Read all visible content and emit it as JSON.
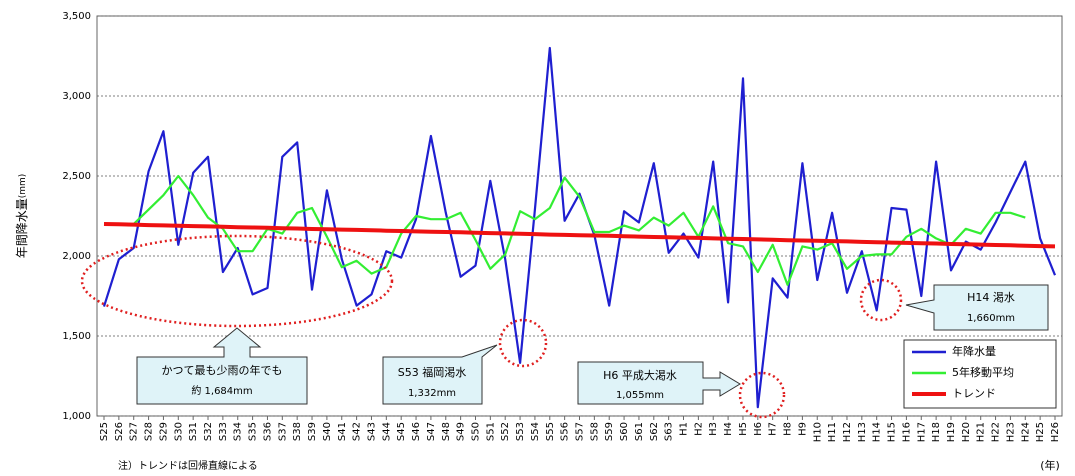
{
  "chart_data": {
    "type": "line",
    "ylabel": "年間降水量",
    "ylabel_unit": "(mm)",
    "xlabel": "(年)",
    "note": "注）トレンドは回帰直線による",
    "categories": [
      "S25",
      "S26",
      "S27",
      "S28",
      "S29",
      "S30",
      "S31",
      "S32",
      "S33",
      "S34",
      "S35",
      "S36",
      "S37",
      "S38",
      "S39",
      "S40",
      "S41",
      "S42",
      "S43",
      "S44",
      "S45",
      "S46",
      "S47",
      "S48",
      "S49",
      "S50",
      "S51",
      "S52",
      "S53",
      "S54",
      "S55",
      "S56",
      "S57",
      "S58",
      "S59",
      "S60",
      "S61",
      "S62",
      "S63",
      "H1",
      "H2",
      "H3",
      "H4",
      "H5",
      "H6",
      "H7",
      "H8",
      "H9",
      "H10",
      "H11",
      "H12",
      "H13",
      "H14",
      "H15",
      "H16",
      "H17",
      "H18",
      "H19",
      "H20",
      "H21",
      "H22",
      "H23",
      "H24",
      "H25",
      "H26"
    ],
    "series": [
      {
        "name": "年降水量",
        "color": "#1f1fd0",
        "values": [
          1684,
          1980,
          2050,
          2530,
          2780,
          2070,
          2520,
          2620,
          1900,
          2050,
          1760,
          1800,
          2620,
          2710,
          1790,
          2410,
          1980,
          1690,
          1760,
          2030,
          1990,
          2230,
          2750,
          2270,
          1870,
          1940,
          2470,
          1980,
          1332,
          2290,
          3300,
          2220,
          2390,
          2130,
          1690,
          2280,
          2210,
          2580,
          2020,
          2140,
          1990,
          2590,
          1710,
          3110,
          1055,
          1860,
          1740,
          2580,
          1850,
          2270,
          1770,
          2030,
          1660,
          2300,
          2290,
          1750,
          2590,
          1910,
          2090,
          2040,
          2210,
          2400,
          2590,
          2110,
          1880
        ]
      },
      {
        "name": "5年移動平均",
        "color": "#33ee33",
        "values": [
          null,
          null,
          2200,
          2290,
          2380,
          2500,
          2380,
          2240,
          2170,
          2030,
          2030,
          2170,
          2140,
          2270,
          2300,
          2120,
          1930,
          1970,
          1890,
          1930,
          2140,
          2250,
          2230,
          2230,
          2270,
          2100,
          1920,
          2010,
          2280,
          2230,
          2300,
          2490,
          2370,
          2150,
          2150,
          2190,
          2160,
          2240,
          2190,
          2270,
          2120,
          2310,
          2080,
          2060,
          1900,
          2070,
          1820,
          2060,
          2040,
          2080,
          1920,
          2000,
          2010,
          2010,
          2120,
          2170,
          2110,
          2070,
          2170,
          2140,
          2270,
          2270,
          2240,
          null,
          null
        ]
      },
      {
        "name": "トレンド",
        "color": "#ee1111",
        "values": [
          2200,
          2198,
          2196,
          2193,
          2191,
          2189,
          2187,
          2185,
          2183,
          2180,
          2178,
          2176,
          2174,
          2172,
          2169,
          2167,
          2165,
          2163,
          2161,
          2158,
          2156,
          2154,
          2152,
          2150,
          2148,
          2145,
          2143,
          2141,
          2139,
          2137,
          2134,
          2132,
          2130,
          2128,
          2126,
          2123,
          2121,
          2119,
          2117,
          2115,
          2113,
          2110,
          2108,
          2106,
          2104,
          2102,
          2099,
          2097,
          2095,
          2093,
          2091,
          2088,
          2086,
          2084,
          2082,
          2080,
          2078,
          2075,
          2073,
          2071,
          2069,
          2067,
          2064,
          2062,
          2060
        ]
      }
    ],
    "ylim": [
      1000,
      3500
    ],
    "yticks": [
      {
        "value": 1000,
        "label": "1,000"
      },
      {
        "value": 1500,
        "label": "1,500"
      },
      {
        "value": 2000,
        "label": "2,000"
      },
      {
        "value": 2500,
        "label": "2,500"
      },
      {
        "value": 3000,
        "label": "3,000"
      },
      {
        "value": 3500,
        "label": "3,500"
      }
    ],
    "grid": true,
    "legend": "lower right",
    "annotations": [
      {
        "lines": [
          "かつて最も少雨の年でも",
          "約 1,684mm"
        ]
      },
      {
        "lines": [
          "S53 福岡渇水",
          "1,332mm"
        ]
      },
      {
        "lines": [
          "H6 平成大渇水",
          "1,055mm"
        ]
      },
      {
        "lines": [
          "H14 渇水",
          "1,660mm"
        ]
      }
    ]
  }
}
